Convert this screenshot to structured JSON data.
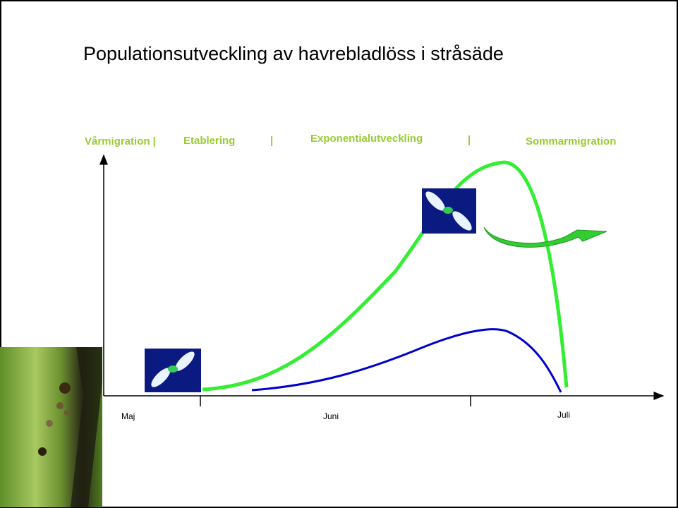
{
  "title": "Populationsutveckling av havrebladlöss i stråsäde",
  "phases": [
    "Vårmigration |",
    "Etablering",
    "|",
    "Exponentialutveckling",
    "|",
    "Sommarmigration"
  ],
  "months": [
    "Maj",
    "Juni",
    "Juli"
  ]
}
